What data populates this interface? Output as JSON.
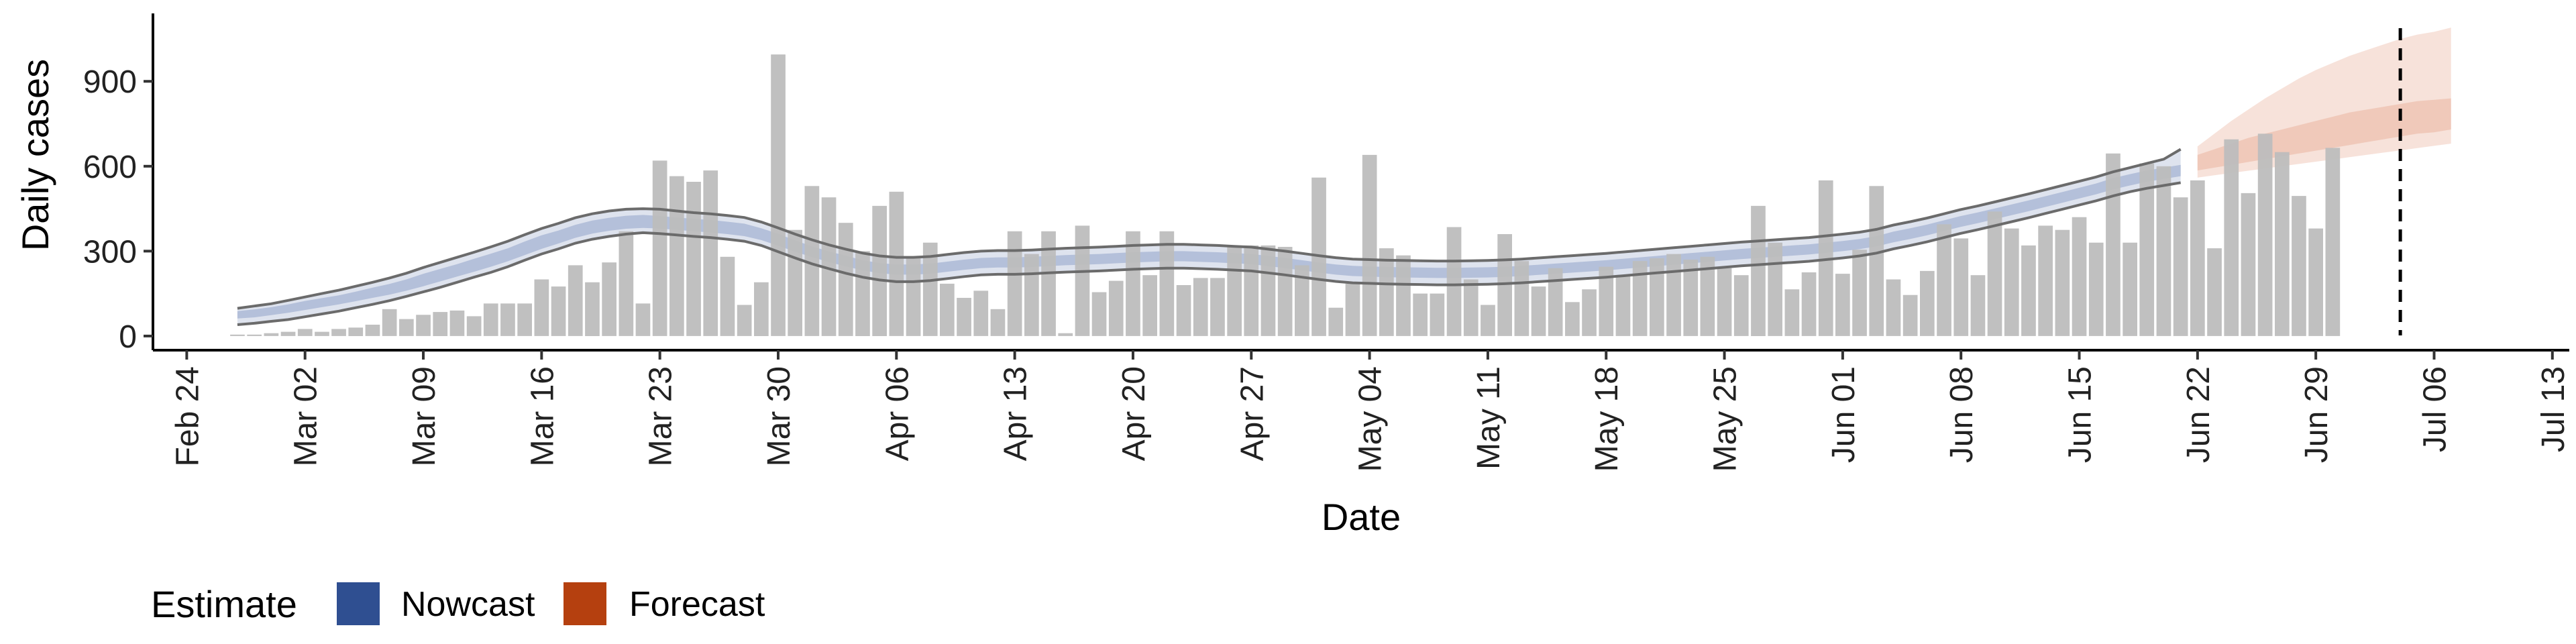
{
  "chart_data": {
    "type": "bar",
    "xlabel": "Date",
    "ylabel": "Daily cases",
    "x_ticks": [
      "Feb 24",
      "Mar 02",
      "Mar 09",
      "Mar 16",
      "Mar 23",
      "Mar 30",
      "Apr 06",
      "Apr 13",
      "Apr 20",
      "Apr 27",
      "May 04",
      "May 11",
      "May 18",
      "May 25",
      "Jun 01",
      "Jun 08",
      "Jun 15",
      "Jun 22",
      "Jun 29",
      "Jul 06",
      "Jul 13"
    ],
    "y_ticks": [
      0,
      300,
      600,
      900
    ],
    "ylim": [
      -50,
      1140
    ],
    "xlim": [
      "2020-02-22",
      "2020-07-14"
    ],
    "start_date": "2020-02-27",
    "daily_cases": [
      5,
      5,
      10,
      15,
      25,
      15,
      25,
      30,
      40,
      95,
      60,
      75,
      85,
      90,
      70,
      115,
      115,
      115,
      200,
      175,
      250,
      190,
      260,
      370,
      115,
      620,
      565,
      545,
      585,
      280,
      110,
      190,
      995,
      375,
      530,
      490,
      400,
      300,
      460,
      510,
      275,
      330,
      185,
      135,
      160,
      95,
      370,
      290,
      370,
      10,
      390,
      155,
      195,
      370,
      215,
      370,
      180,
      205,
      205,
      320,
      320,
      320,
      315,
      250,
      560,
      100,
      185,
      640,
      310,
      285,
      150,
      150,
      385,
      200,
      110,
      360,
      265,
      175,
      240,
      120,
      165,
      245,
      215,
      265,
      275,
      290,
      270,
      280,
      240,
      215,
      460,
      330,
      165,
      225,
      550,
      220,
      305,
      530,
      200,
      145,
      230,
      395,
      345,
      215,
      440,
      380,
      320,
      390,
      375,
      420,
      330,
      645,
      330,
      610,
      600,
      490,
      550,
      310,
      695,
      505,
      715,
      650,
      495,
      380,
      665
    ],
    "nowcast": {
      "median": [
        75,
        80,
        88,
        97,
        108,
        118,
        128,
        140,
        153,
        165,
        180,
        198,
        215,
        232,
        250,
        268,
        287,
        310,
        332,
        350,
        370,
        385,
        395,
        402,
        405,
        402,
        397,
        392,
        388,
        382,
        375,
        360,
        340,
        318,
        298,
        280,
        265,
        250,
        240,
        235,
        235,
        238,
        245,
        252,
        258,
        260,
        260,
        262,
        265,
        268,
        270,
        272,
        275,
        278,
        280,
        282,
        282,
        280,
        278,
        275,
        272,
        265,
        258,
        250,
        242,
        235,
        230,
        228,
        226,
        225,
        224,
        223,
        223,
        224,
        225,
        227,
        230,
        234,
        238,
        242,
        246,
        250,
        255,
        260,
        265,
        270,
        275,
        280,
        285,
        290,
        294,
        298,
        302,
        306,
        312,
        318,
        325,
        335,
        350,
        362,
        375,
        390,
        405,
        418,
        432,
        446,
        460,
        475,
        490,
        505,
        520,
        538,
        552,
        565,
        575,
        585
      ],
      "inner_lo": [
        62,
        66,
        74,
        82,
        92,
        102,
        112,
        123,
        135,
        146,
        160,
        176,
        193,
        210,
        227,
        245,
        264,
        286,
        308,
        327,
        347,
        362,
        372,
        379,
        382,
        380,
        375,
        370,
        366,
        360,
        353,
        339,
        319,
        298,
        279,
        261,
        246,
        232,
        222,
        217,
        217,
        220,
        227,
        234,
        240,
        242,
        242,
        244,
        247,
        250,
        252,
        254,
        257,
        260,
        262,
        264,
        264,
        262,
        260,
        257,
        254,
        247,
        240,
        232,
        224,
        217,
        212,
        210,
        208,
        207,
        206,
        205,
        205,
        206,
        207,
        209,
        212,
        216,
        220,
        224,
        228,
        232,
        237,
        242,
        247,
        252,
        257,
        262,
        267,
        272,
        276,
        280,
        284,
        288,
        294,
        300,
        307,
        317,
        331,
        343,
        356,
        371,
        386,
        399,
        413,
        427,
        441,
        456,
        471,
        486,
        501,
        518,
        532,
        545,
        555,
        565
      ],
      "inner_hi": [
        88,
        94,
        102,
        112,
        124,
        134,
        144,
        157,
        171,
        184,
        200,
        220,
        237,
        254,
        273,
        291,
        310,
        334,
        356,
        373,
        393,
        408,
        418,
        425,
        428,
        424,
        419,
        414,
        410,
        404,
        397,
        381,
        361,
        338,
        317,
        299,
        284,
        268,
        258,
        253,
        253,
        256,
        263,
        270,
        276,
        278,
        278,
        280,
        283,
        286,
        288,
        290,
        293,
        296,
        298,
        300,
        300,
        298,
        296,
        293,
        290,
        283,
        276,
        268,
        260,
        253,
        248,
        246,
        244,
        243,
        242,
        241,
        241,
        242,
        243,
        245,
        248,
        252,
        256,
        260,
        264,
        268,
        273,
        278,
        283,
        288,
        293,
        298,
        303,
        308,
        312,
        316,
        320,
        324,
        330,
        336,
        343,
        353,
        369,
        381,
        394,
        409,
        424,
        437,
        451,
        465,
        479,
        494,
        509,
        524,
        539,
        558,
        572,
        585,
        595,
        605
      ],
      "outer_lo": [
        40,
        45,
        52,
        58,
        68,
        78,
        88,
        100,
        112,
        125,
        140,
        156,
        172,
        190,
        208,
        225,
        245,
        268,
        290,
        308,
        328,
        342,
        352,
        360,
        365,
        362,
        357,
        352,
        348,
        342,
        335,
        320,
        298,
        276,
        255,
        238,
        222,
        208,
        198,
        192,
        192,
        196,
        203,
        210,
        216,
        218,
        218,
        220,
        223,
        226,
        228,
        230,
        233,
        236,
        238,
        240,
        240,
        238,
        236,
        233,
        230,
        223,
        216,
        208,
        200,
        193,
        188,
        186,
        184,
        183,
        182,
        181,
        181,
        182,
        183,
        185,
        188,
        192,
        196,
        200,
        204,
        208,
        213,
        218,
        223,
        228,
        233,
        238,
        243,
        248,
        252,
        256,
        260,
        264,
        270,
        276,
        283,
        293,
        308,
        320,
        333,
        348,
        363,
        376,
        390,
        404,
        418,
        433,
        448,
        463,
        478,
        495,
        510,
        522,
        532,
        542
      ],
      "outer_hi": [
        98,
        106,
        114,
        126,
        138,
        150,
        162,
        176,
        190,
        205,
        222,
        242,
        260,
        278,
        296,
        315,
        335,
        358,
        380,
        398,
        418,
        432,
        442,
        448,
        450,
        448,
        442,
        436,
        432,
        426,
        419,
        403,
        382,
        360,
        340,
        322,
        307,
        293,
        283,
        278,
        278,
        281,
        288,
        295,
        300,
        302,
        302,
        304,
        307,
        310,
        312,
        314,
        317,
        320,
        322,
        324,
        324,
        322,
        320,
        317,
        314,
        307,
        300,
        292,
        284,
        277,
        272,
        270,
        268,
        267,
        266,
        265,
        265,
        266,
        267,
        269,
        272,
        276,
        280,
        284,
        288,
        292,
        297,
        302,
        307,
        312,
        317,
        322,
        327,
        332,
        336,
        340,
        344,
        348,
        354,
        360,
        367,
        377,
        392,
        404,
        417,
        432,
        447,
        460,
        474,
        488,
        502,
        517,
        532,
        547,
        562,
        580,
        595,
        610,
        625,
        660
      ]
    },
    "forecast": {
      "outer_lo": [
        560,
        568,
        576,
        584,
        592,
        600,
        608,
        616,
        624,
        632,
        640,
        648,
        656,
        664,
        672,
        680
      ],
      "outer_hi": [
        670,
        715,
        760,
        800,
        840,
        875,
        910,
        940,
        965,
        990,
        1010,
        1030,
        1050,
        1065,
        1075,
        1090
      ],
      "inner_lo": [
        585,
        595,
        605,
        615,
        625,
        635,
        645,
        655,
        665,
        675,
        685,
        695,
        705,
        715,
        720,
        730
      ],
      "inner_hi": [
        640,
        660,
        680,
        700,
        715,
        730,
        745,
        760,
        775,
        790,
        800,
        810,
        820,
        830,
        835,
        840
      ]
    },
    "cutoff_date": "2020-07-04",
    "legend": {
      "title": "Estimate",
      "items": [
        {
          "label": "Nowcast",
          "color": "#2f4f91"
        },
        {
          "label": "Forecast",
          "color": "#b5400f"
        }
      ]
    },
    "colors": {
      "bars": "#bdbdbd",
      "nowcast_band": "#c2cce0",
      "nowcast_inner": "#a3b1d1",
      "nowcast_line": "#6b6b6b",
      "forecast_outer": "#f6dfd6",
      "forecast_inner": "#eec3b2",
      "cutoff_line": "#000000"
    }
  }
}
